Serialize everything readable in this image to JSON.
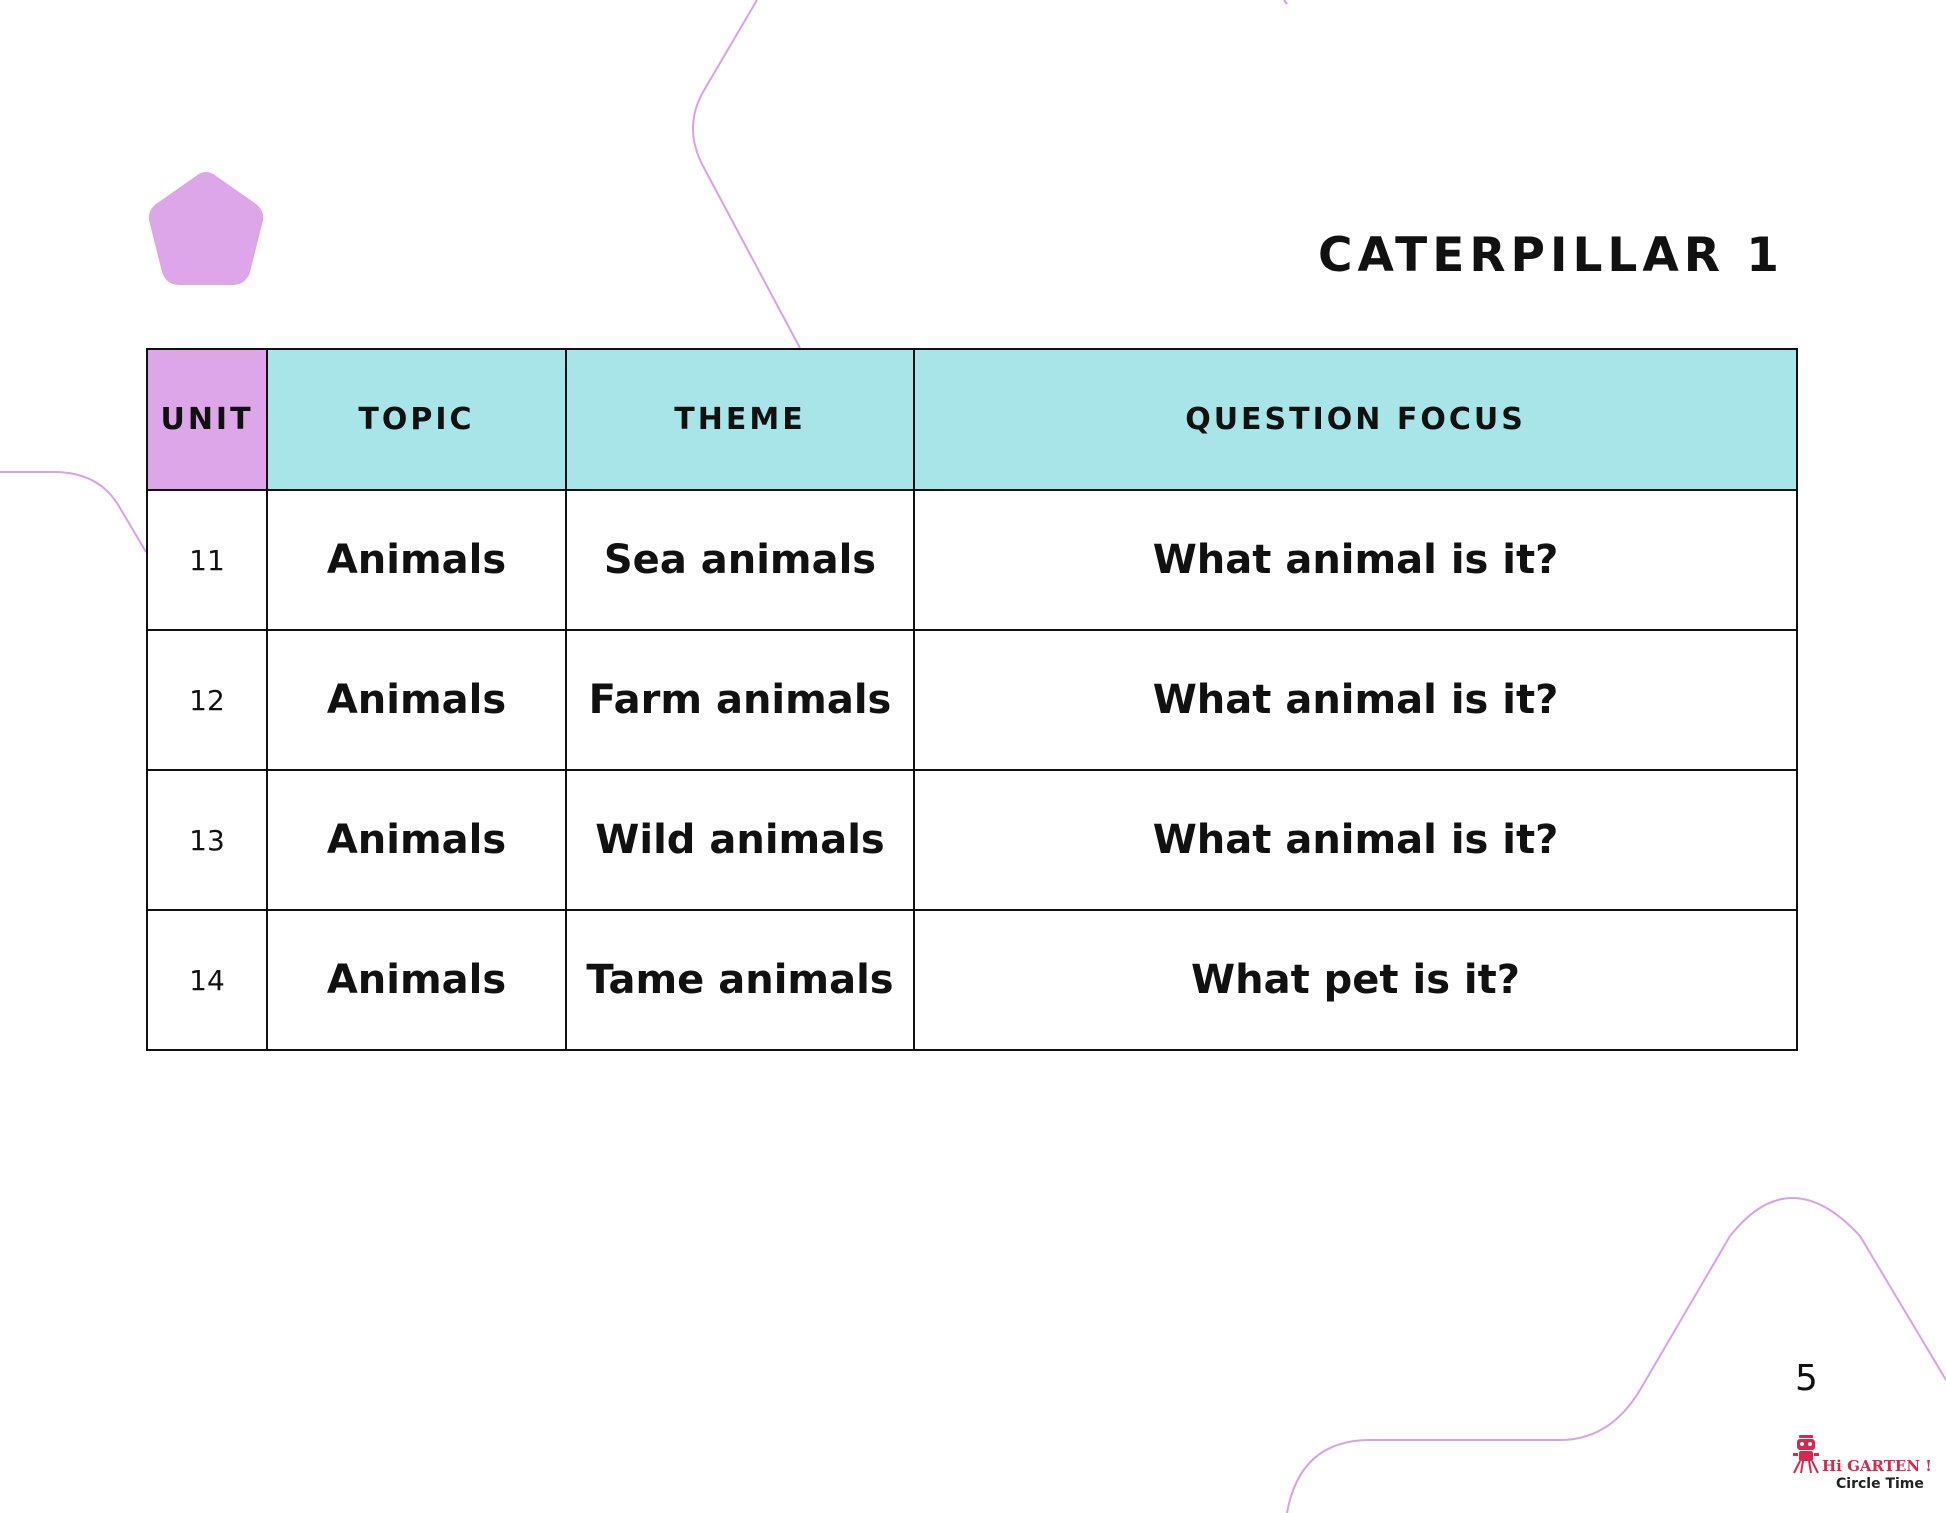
{
  "title": "CATERPILLAR 1",
  "table": {
    "headers": [
      "UNIT",
      "TOPIC",
      "THEME",
      "QUESTION FOCUS"
    ],
    "rows": [
      {
        "unit": "11",
        "topic": "Animals",
        "theme": "Sea animals",
        "question_focus": "What animal is it?"
      },
      {
        "unit": "12",
        "topic": "Animals",
        "theme": "Farm animals",
        "question_focus": "What animal is it?"
      },
      {
        "unit": "13",
        "topic": "Animals",
        "theme": "Wild animals",
        "question_focus": "What animal is it?"
      },
      {
        "unit": "14",
        "topic": "Animals",
        "theme": "Tame animals",
        "question_focus": "What pet is it?"
      }
    ]
  },
  "page_number": "5",
  "logo": {
    "brand": "Hi GARTEN !",
    "subtitle": "Circle Time"
  },
  "colors": {
    "header_teal": "#a8e5e8",
    "accent_purple": "#dca6e8",
    "logo_red": "#d8284e"
  },
  "icons": {
    "decoration": "pentagon-shape",
    "logo": "robot-icon"
  }
}
